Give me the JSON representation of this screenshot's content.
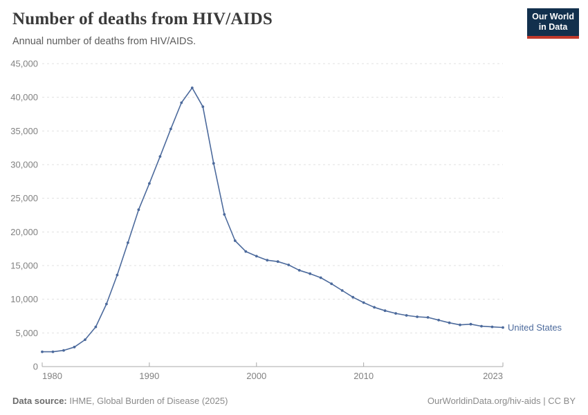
{
  "header": {
    "title": "Number of deaths from HIV/AIDS",
    "subtitle": "Annual number of deaths from HIV/AIDS.",
    "logo": {
      "line1": "Our World",
      "line2": "in Data"
    }
  },
  "colors": {
    "line": "#4c6a9c",
    "logo_bg": "#12304d",
    "logo_stripe": "#c0392b",
    "gridline": "#e0e0e0",
    "axis": "#a8a8a8",
    "tick_label": "#818181"
  },
  "chart_data": {
    "type": "line",
    "title": "Number of deaths from HIV/AIDS",
    "xlabel": "",
    "ylabel": "",
    "grid": "horizontal-dashed",
    "legend_position": "end-of-line-label",
    "xlim": [
      1980,
      2023
    ],
    "ylim": [
      0,
      45000
    ],
    "xticks": [
      1980,
      1990,
      2000,
      2010,
      2023
    ],
    "yticks": [
      0,
      5000,
      10000,
      15000,
      20000,
      25000,
      30000,
      35000,
      40000,
      45000
    ],
    "x": [
      1980,
      1981,
      1982,
      1983,
      1984,
      1985,
      1986,
      1987,
      1988,
      1989,
      1990,
      1991,
      1992,
      1993,
      1994,
      1995,
      1996,
      1997,
      1998,
      1999,
      2000,
      2001,
      2002,
      2003,
      2004,
      2005,
      2006,
      2007,
      2008,
      2009,
      2010,
      2011,
      2012,
      2013,
      2014,
      2015,
      2016,
      2017,
      2018,
      2019,
      2020,
      2021,
      2022,
      2023
    ],
    "series": [
      {
        "name": "United States",
        "values": [
          2200,
          2200,
          2400,
          2900,
          4000,
          5900,
          9300,
          13600,
          18400,
          23300,
          27200,
          31200,
          35300,
          39200,
          41400,
          38600,
          30200,
          22600,
          18700,
          17100,
          16400,
          15800,
          15600,
          15100,
          14300,
          13800,
          13200,
          12300,
          11300,
          10300,
          9500,
          8800,
          8300,
          7900,
          7600,
          7400,
          7300,
          6900,
          6500,
          6200,
          6300,
          6000,
          5900,
          5800
        ]
      }
    ]
  },
  "footer": {
    "datasource_label": "Data source:",
    "datasource_value": "IHME, Global Burden of Disease (2025)",
    "credit": "OurWorldinData.org/hiv-aids | CC BY"
  }
}
